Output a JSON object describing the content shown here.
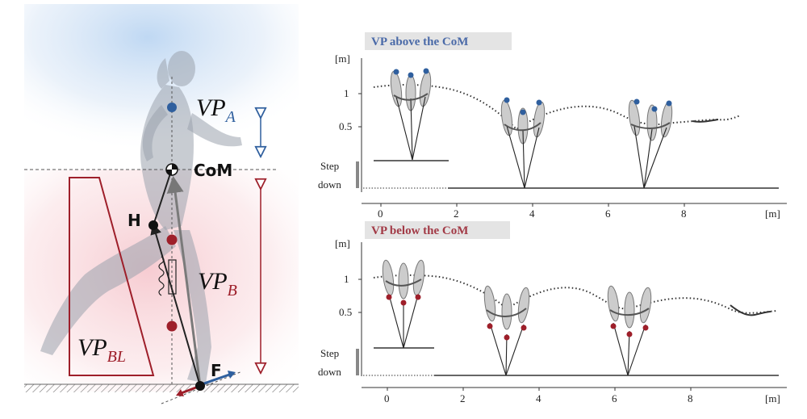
{
  "left_panel": {
    "labels": {
      "vp_a": "VP",
      "vp_a_sub": "A",
      "com": "CoM",
      "hip": "H",
      "vp_b": "VP",
      "vp_b_sub": "B",
      "vp_bl": "VP",
      "vp_bl_sub": "BL",
      "foot": "F"
    },
    "colors": {
      "vp_above": "#2f5f9e",
      "vp_below": "#9e1f2a",
      "bl_outline": "#9e1f2a",
      "leg": "#222222",
      "grf": "#7a7a7a"
    }
  },
  "top_plot": {
    "badge": "VP above the CoM",
    "y_unit": "[m]",
    "x_unit": "[m]",
    "y_ticks": [
      "1",
      "0.5"
    ],
    "x_ticks": [
      "0",
      "2",
      "4",
      "6",
      "8"
    ],
    "step_label_1": "Step",
    "step_label_2": "down"
  },
  "bottom_plot": {
    "badge": "VP below the CoM",
    "y_unit": "[m]",
    "x_unit": "[m]",
    "y_ticks": [
      "1",
      "0.5"
    ],
    "x_ticks": [
      "0",
      "2",
      "4",
      "6",
      "8"
    ],
    "step_label_1": "Step",
    "step_label_2": "down"
  }
}
